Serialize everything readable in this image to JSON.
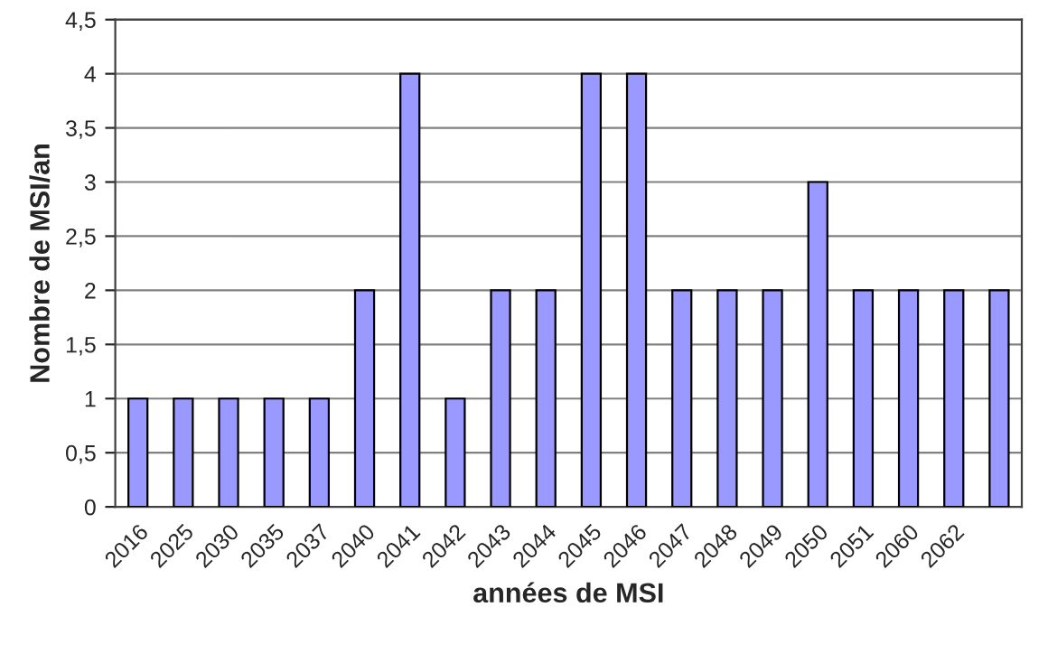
{
  "chart_data": {
    "type": "bar",
    "xlabel": "années de MSI",
    "ylabel": "Nombre de MSI/an",
    "categories": [
      "2016",
      "2025",
      "2030",
      "2035",
      "2037",
      "2040",
      "2041",
      "2042",
      "2043",
      "2044",
      "2045",
      "2046",
      "2047",
      "2048",
      "2049",
      "2050",
      "2051",
      "2060",
      "2062",
      null
    ],
    "values": [
      1,
      1,
      1,
      1,
      1,
      2,
      4,
      1,
      2,
      2,
      4,
      4,
      2,
      2,
      2,
      3,
      2,
      2,
      2,
      2
    ],
    "color": "#9999ff",
    "ylim": [
      0,
      4.5
    ],
    "yticks": [
      {
        "value": 0,
        "label": "0"
      },
      {
        "value": 0.5,
        "label": "0,5"
      },
      {
        "value": 1,
        "label": "1"
      },
      {
        "value": 1.5,
        "label": "1,5"
      },
      {
        "value": 2,
        "label": "2"
      },
      {
        "value": 2.5,
        "label": "2,5"
      },
      {
        "value": 3,
        "label": "3"
      },
      {
        "value": 3.5,
        "label": "3,5"
      },
      {
        "value": 4,
        "label": "4"
      },
      {
        "value": 4.5,
        "label": "4,5"
      }
    ],
    "grid": "y"
  }
}
